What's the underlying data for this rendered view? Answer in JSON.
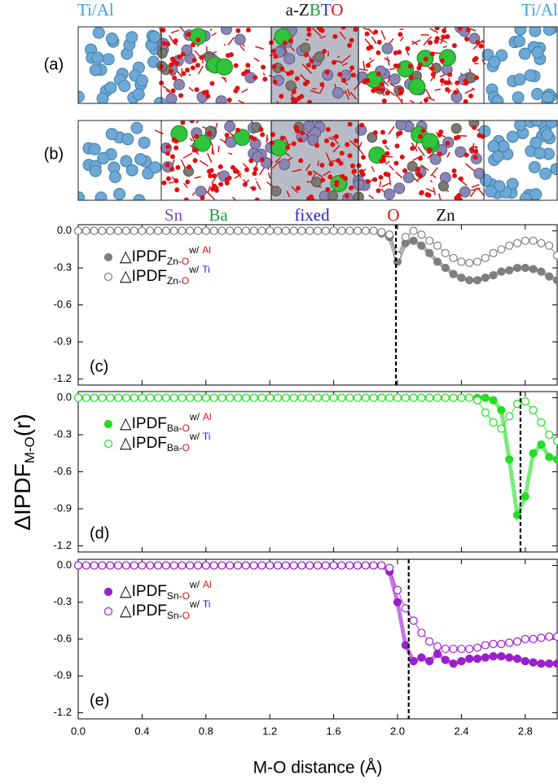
{
  "structure": {
    "left_label": "Ti/Al",
    "right_label": "Ti/Al",
    "title": [
      "a-Z",
      "B",
      "T",
      "O"
    ],
    "panels": [
      "(a)",
      "(b)"
    ],
    "legend": [
      "Sn",
      "Ba",
      "fixed",
      "O",
      "Zn"
    ]
  },
  "chart_data": [
    {
      "type": "scatter",
      "panel_label": "(c)",
      "x": [
        0,
        0.05,
        0.1,
        0.15,
        0.2,
        0.25,
        0.3,
        0.35,
        0.4,
        0.45,
        0.5,
        0.55,
        0.6,
        0.65,
        0.7,
        0.75,
        0.8,
        0.85,
        0.9,
        0.95,
        1,
        1.05,
        1.1,
        1.15,
        1.2,
        1.25,
        1.3,
        1.35,
        1.4,
        1.45,
        1.5,
        1.55,
        1.6,
        1.65,
        1.7,
        1.75,
        1.8,
        1.85,
        1.9,
        1.95,
        2,
        2.05,
        2.1,
        2.15,
        2.2,
        2.25,
        2.3,
        2.35,
        2.4,
        2.45,
        2.5,
        2.55,
        2.6,
        2.65,
        2.7,
        2.75,
        2.8,
        2.85,
        2.9,
        2.95,
        3
      ],
      "series": [
        {
          "name": "△IPDF",
          "name_sub": [
            "Zn-",
            "O"
          ],
          "name_sup": [
            "w/",
            "Al"
          ],
          "color": "#7f7f7f",
          "marker": "filled",
          "values": [
            0,
            0,
            0,
            0,
            0,
            0,
            0,
            0,
            0,
            0,
            0,
            0,
            0,
            0,
            0,
            0,
            0,
            0,
            0,
            0,
            0,
            0,
            0,
            0,
            0,
            0,
            0,
            0,
            0,
            0,
            0,
            0,
            0,
            0,
            0,
            0,
            0,
            0,
            -0.02,
            -0.05,
            -0.25,
            -0.1,
            -0.08,
            -0.12,
            -0.18,
            -0.25,
            -0.3,
            -0.35,
            -0.38,
            -0.4,
            -0.4,
            -0.38,
            -0.36,
            -0.33,
            -0.32,
            -0.3,
            -0.3,
            -0.31,
            -0.33,
            -0.37,
            -0.4
          ]
        },
        {
          "name": "△IPDF",
          "name_sub": [
            "Zn-",
            "O"
          ],
          "name_sup": [
            "w/",
            "Ti"
          ],
          "color": "#7f7f7f",
          "marker": "open",
          "values": [
            0,
            0,
            0,
            0,
            0,
            0,
            0,
            0,
            0,
            0,
            0,
            0,
            0,
            0,
            0,
            0,
            0,
            0,
            0,
            0,
            0,
            0,
            0,
            0,
            0,
            0,
            0,
            0,
            0,
            0,
            0,
            0,
            0,
            0,
            0,
            0,
            0,
            0,
            -0.01,
            -0.03,
            -0.2,
            -0.05,
            0,
            -0.03,
            -0.08,
            -0.12,
            -0.18,
            -0.22,
            -0.25,
            -0.26,
            -0.25,
            -0.22,
            -0.18,
            -0.15,
            -0.12,
            -0.1,
            -0.08,
            -0.08,
            -0.1,
            -0.12,
            -0.2
          ]
        }
      ],
      "xlim": [
        0,
        3.0
      ],
      "ylim": [
        -1.25,
        0.05
      ],
      "xticks": [
        0,
        0.4,
        0.8,
        1.2,
        1.6,
        2.0,
        2.4,
        2.8
      ],
      "yticks": [
        {
          "value": 0,
          "label": "0.0"
        },
        -0.3,
        -0.6,
        -0.9,
        -1.2
      ],
      "vline": 1.99
    },
    {
      "type": "scatter",
      "panel_label": "(d)",
      "ylabel": [
        "ΔIPDF",
        "M-O",
        "(r)"
      ],
      "x": [
        0,
        0.05,
        0.1,
        0.15,
        0.2,
        0.25,
        0.3,
        0.35,
        0.4,
        0.45,
        0.5,
        0.55,
        0.6,
        0.65,
        0.7,
        0.75,
        0.8,
        0.85,
        0.9,
        0.95,
        1,
        1.05,
        1.1,
        1.15,
        1.2,
        1.25,
        1.3,
        1.35,
        1.4,
        1.45,
        1.5,
        1.55,
        1.6,
        1.65,
        1.7,
        1.75,
        1.8,
        1.85,
        1.9,
        1.95,
        2,
        2.05,
        2.1,
        2.15,
        2.2,
        2.25,
        2.3,
        2.35,
        2.4,
        2.45,
        2.5,
        2.55,
        2.6,
        2.65,
        2.7,
        2.75,
        2.8,
        2.85,
        2.9,
        2.95,
        3
      ],
      "series": [
        {
          "name": "△IPDF",
          "name_sub": [
            "Ba-",
            "O"
          ],
          "name_sup": [
            "w/",
            "Al"
          ],
          "color": "#22dd22",
          "marker": "filled",
          "values": [
            0,
            0,
            0,
            0,
            0,
            0,
            0,
            0,
            0,
            0,
            0,
            0,
            0,
            0,
            0,
            0,
            0,
            0,
            0,
            0,
            0,
            0,
            0,
            0,
            0,
            0,
            0,
            0,
            0,
            0,
            0,
            0,
            0,
            0,
            0,
            0,
            0,
            0,
            0,
            0,
            0,
            0,
            0,
            0,
            0,
            0,
            0,
            0,
            0,
            0,
            0,
            0,
            -0.02,
            -0.1,
            -0.5,
            -0.95,
            -0.8,
            -0.45,
            -0.38,
            -0.48,
            -0.5
          ]
        },
        {
          "name": "△IPDF",
          "name_sub": [
            "Ba-",
            "O"
          ],
          "name_sup": [
            "w/",
            "Ti"
          ],
          "color": "#22dd22",
          "marker": "open",
          "values": [
            0,
            0,
            0,
            0,
            0,
            0,
            0,
            0,
            0,
            0,
            0,
            0,
            0,
            0,
            0,
            0,
            0,
            0,
            0,
            0,
            0,
            0,
            0,
            0,
            0,
            0,
            0,
            0,
            0,
            0,
            0,
            0,
            0,
            0,
            0,
            0,
            0,
            0,
            0,
            0,
            0,
            0,
            0,
            0,
            0,
            0,
            0,
            0,
            0,
            0,
            -0.02,
            -0.12,
            -0.2,
            -0.25,
            -0.15,
            -0.05,
            -0.03,
            -0.1,
            -0.2,
            -0.3,
            -0.35
          ]
        }
      ],
      "xlim": [
        0,
        3.0
      ],
      "ylim": [
        -1.25,
        0.05
      ],
      "xticks": [
        0,
        0.4,
        0.8,
        1.2,
        1.6,
        2.0,
        2.4,
        2.8
      ],
      "yticks": [
        {
          "value": 0,
          "label": "0.0"
        },
        -0.3,
        -0.6,
        -0.9,
        -1.2
      ],
      "vline": 2.77
    },
    {
      "type": "scatter",
      "panel_label": "(e)",
      "xlabel": "M-O distance (Å)",
      "x": [
        0,
        0.05,
        0.1,
        0.15,
        0.2,
        0.25,
        0.3,
        0.35,
        0.4,
        0.45,
        0.5,
        0.55,
        0.6,
        0.65,
        0.7,
        0.75,
        0.8,
        0.85,
        0.9,
        0.95,
        1,
        1.05,
        1.1,
        1.15,
        1.2,
        1.25,
        1.3,
        1.35,
        1.4,
        1.45,
        1.5,
        1.55,
        1.6,
        1.65,
        1.7,
        1.75,
        1.8,
        1.85,
        1.9,
        1.95,
        2,
        2.05,
        2.1,
        2.15,
        2.2,
        2.25,
        2.3,
        2.35,
        2.4,
        2.45,
        2.5,
        2.55,
        2.6,
        2.65,
        2.7,
        2.75,
        2.8,
        2.85,
        2.9,
        2.95,
        3
      ],
      "series": [
        {
          "name": "△IPDF",
          "name_sub": [
            "Sn-",
            "O"
          ],
          "name_sup": [
            "w/",
            "Al"
          ],
          "color": "#9b1fcc",
          "marker": "filled",
          "values": [
            0,
            0,
            0,
            0,
            0,
            0,
            0,
            0,
            0,
            0,
            0,
            0,
            0,
            0,
            0,
            0,
            0,
            0,
            0,
            0,
            0,
            0,
            0,
            0,
            0,
            0,
            0,
            0,
            0,
            0,
            0,
            0,
            0,
            0,
            0,
            0,
            0,
            0,
            0,
            -0.05,
            -0.3,
            -0.65,
            -0.78,
            -0.75,
            -0.78,
            -0.72,
            -0.77,
            -0.8,
            -0.78,
            -0.76,
            -0.76,
            -0.75,
            -0.74,
            -0.74,
            -0.75,
            -0.76,
            -0.78,
            -0.79,
            -0.8,
            -0.8,
            -0.8
          ]
        },
        {
          "name": "△IPDF",
          "name_sub": [
            "Sn-",
            "O"
          ],
          "name_sup": [
            "w/",
            "Ti"
          ],
          "color": "#9b1fcc",
          "marker": "open",
          "values": [
            0,
            0,
            0,
            0,
            0,
            0,
            0,
            0,
            0,
            0,
            0,
            0,
            0,
            0,
            0,
            0,
            0,
            0,
            0,
            0,
            0,
            0,
            0,
            0,
            0,
            0,
            0,
            0,
            0,
            0,
            0,
            0,
            0,
            0,
            0,
            0,
            0,
            0,
            0,
            -0.02,
            -0.2,
            -0.35,
            -0.45,
            -0.55,
            -0.62,
            -0.66,
            -0.68,
            -0.68,
            -0.68,
            -0.68,
            -0.67,
            -0.65,
            -0.64,
            -0.64,
            -0.63,
            -0.62,
            -0.6,
            -0.6,
            -0.59,
            -0.58,
            -0.58
          ]
        }
      ],
      "xlim": [
        0,
        3.0
      ],
      "ylim": [
        -1.25,
        0.05
      ],
      "xticks": [
        {
          "value": 0,
          "label": "0.0"
        },
        0.4,
        0.8,
        1.2,
        1.6,
        {
          "value": 2,
          "label": "2.0"
        },
        2.4,
        2.8
      ],
      "yticks": [
        {
          "value": 0,
          "label": "0.0"
        },
        -0.3,
        -0.6,
        -0.9,
        -1.2
      ],
      "vline": 2.07
    }
  ]
}
